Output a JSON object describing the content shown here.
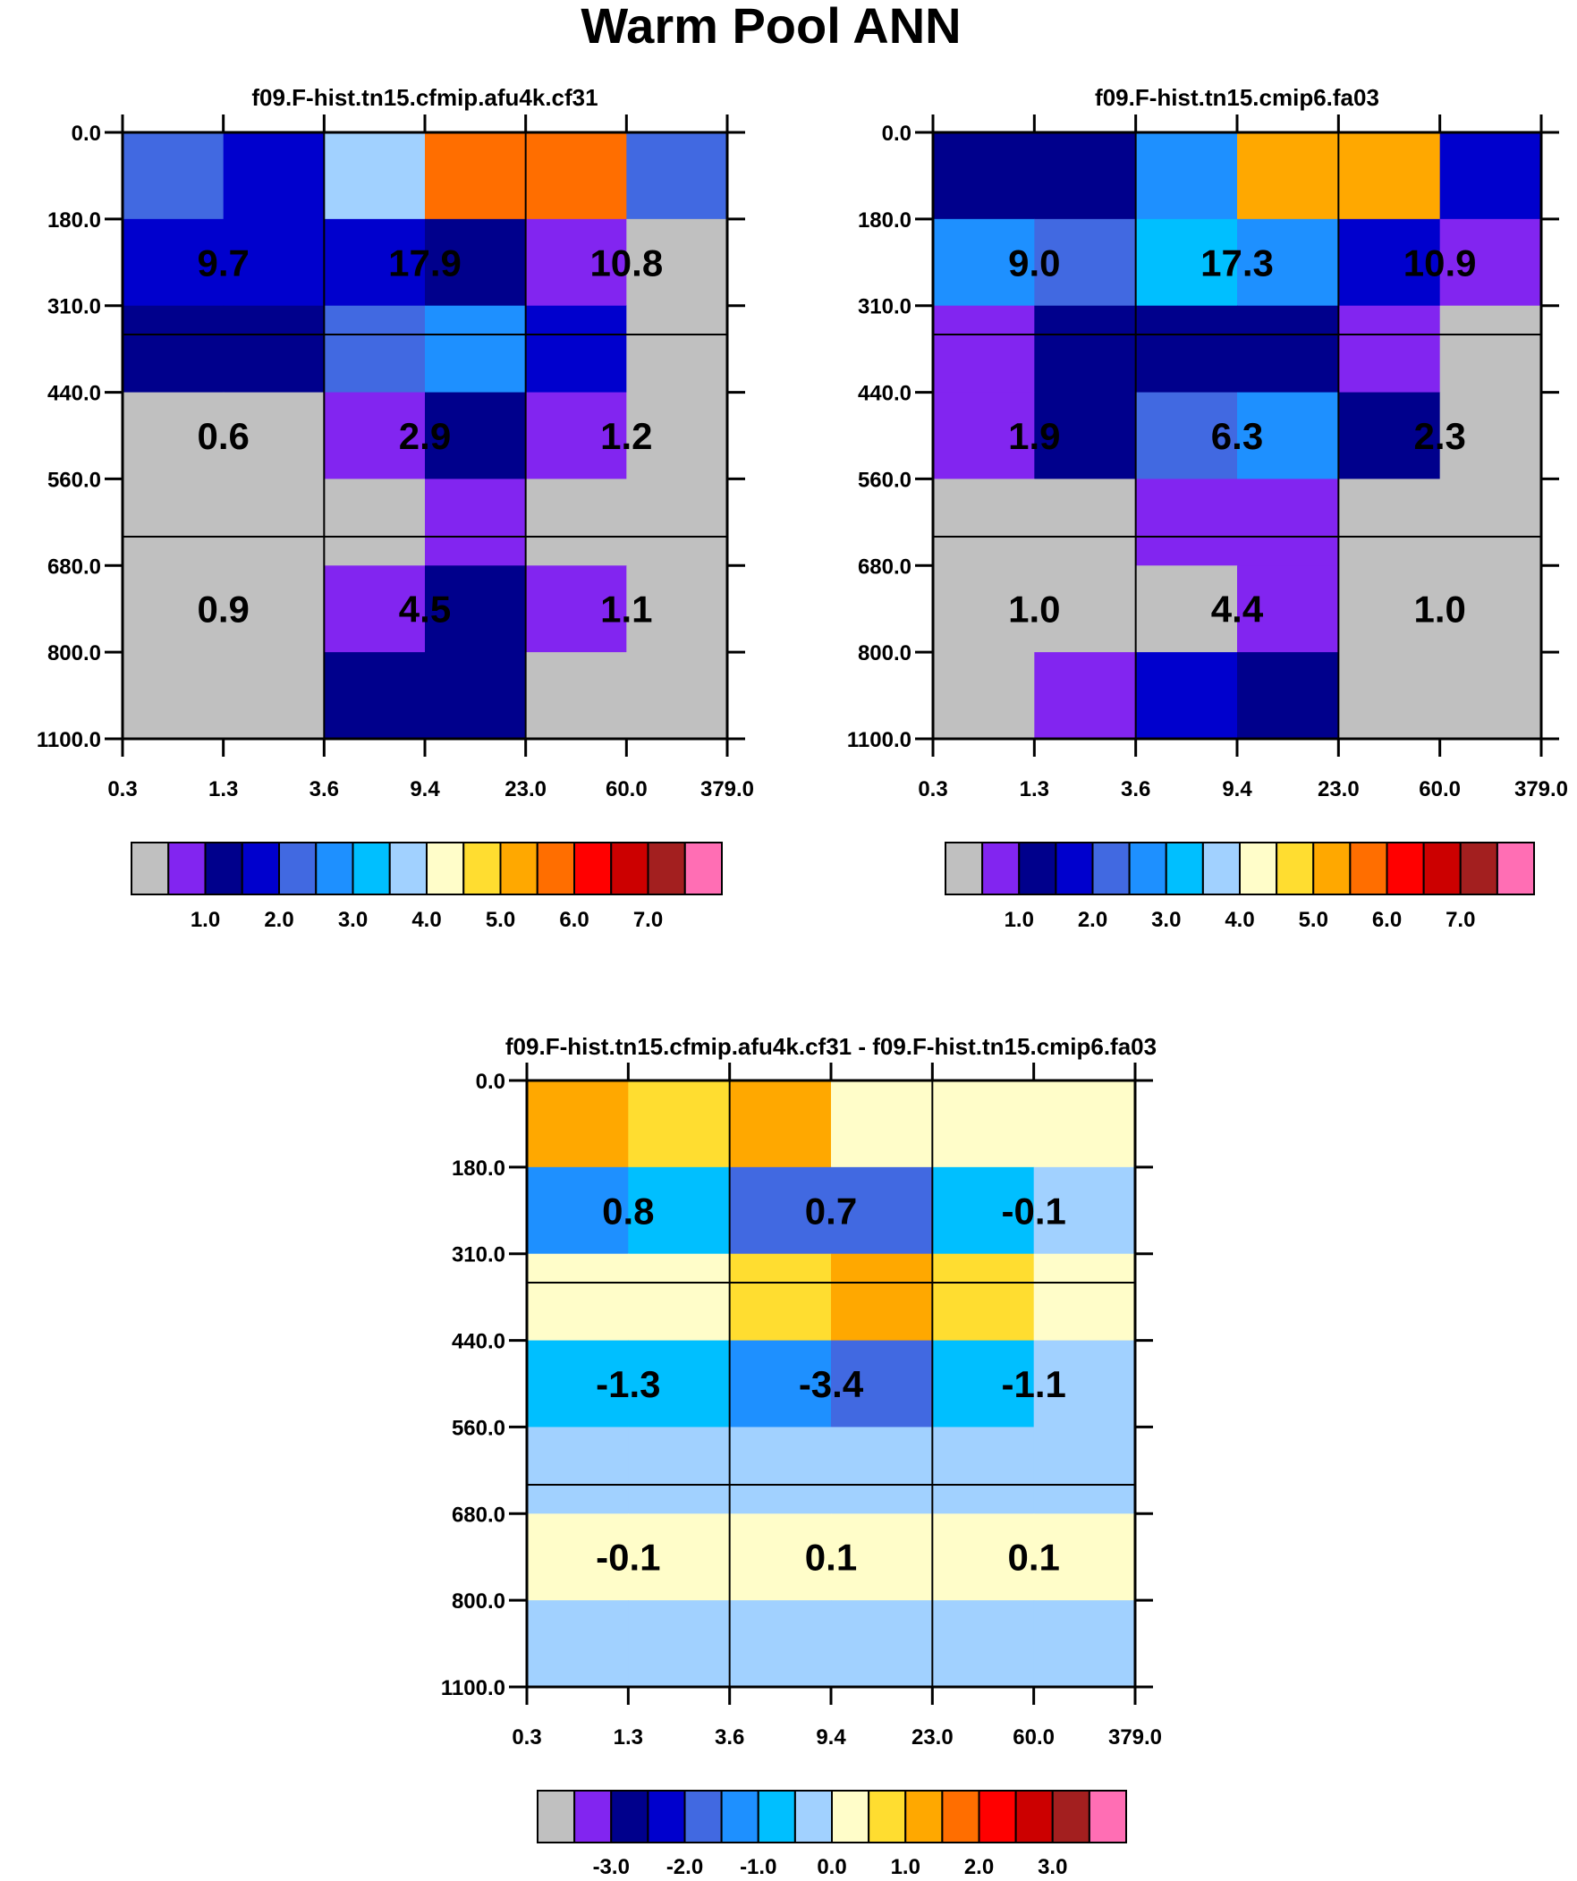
{
  "chart_data": {
    "type": "heatmap",
    "title": "Warm Pool ANN",
    "x_tick_labels": [
      "0.3",
      "1.3",
      "3.6",
      "9.4",
      "23.0",
      "60.0",
      "379.0"
    ],
    "y_tick_labels": [
      "0.0",
      "180.0",
      "310.0",
      "440.0",
      "560.0",
      "680.0",
      "800.0",
      "1100.0"
    ],
    "palette": {
      "gray": "#c0c0c0",
      "purple": "#8225f0",
      "navy": "#00008c",
      "blue": "#0000cd",
      "royal": "#4169e1",
      "dodger": "#1e90ff",
      "sky": "#00bfff",
      "light": "#a1d1ff",
      "cream": "#fffdc9",
      "yellow": "#ffdd30",
      "orange": "#ffa800",
      "dorange": "#ff6e00",
      "red": "#ff0000",
      "dred": "#cc0000",
      "brown": "#a31f1f",
      "pink": "#ff6eb4"
    },
    "panels": [
      {
        "subtitle": "f09.F-hist.tn15.cfmip.afu4k.cf31",
        "grid": [
          [
            "royal",
            "blue",
            "light",
            "dorange",
            "dorange",
            "royal"
          ],
          [
            "blue",
            "blue",
            "blue",
            "navy",
            "purple",
            "gray"
          ],
          [
            "navy",
            "navy",
            "royal",
            "dodger",
            "blue",
            "gray"
          ],
          [
            "gray",
            "gray",
            "purple",
            "navy",
            "purple",
            "gray"
          ],
          [
            "gray",
            "gray",
            "gray",
            "purple",
            "gray",
            "gray"
          ],
          [
            "gray",
            "gray",
            "purple",
            "navy",
            "purple",
            "gray"
          ],
          [
            "gray",
            "gray",
            "navy",
            "navy",
            "gray",
            "gray"
          ]
        ],
        "values": [
          [
            "9.7",
            "17.9",
            "10.8"
          ],
          [
            "0.6",
            "2.9",
            "1.2"
          ],
          [
            "0.9",
            "4.5",
            "1.1"
          ]
        ],
        "colorbar": {
          "colors": [
            "gray",
            "purple",
            "navy",
            "blue",
            "royal",
            "dodger",
            "sky",
            "light",
            "cream",
            "yellow",
            "orange",
            "dorange",
            "red",
            "dred",
            "brown",
            "pink"
          ],
          "labels": [
            "1.0",
            "2.0",
            "3.0",
            "4.0",
            "5.0",
            "6.0",
            "7.0"
          ]
        }
      },
      {
        "subtitle": "f09.F-hist.tn15.cmip6.fa03",
        "grid": [
          [
            "navy",
            "navy",
            "dodger",
            "orange",
            "orange",
            "blue"
          ],
          [
            "dodger",
            "royal",
            "sky",
            "dodger",
            "blue",
            "purple"
          ],
          [
            "purple",
            "navy",
            "navy",
            "navy",
            "purple",
            "gray"
          ],
          [
            "purple",
            "navy",
            "royal",
            "dodger",
            "navy",
            "gray"
          ],
          [
            "gray",
            "gray",
            "purple",
            "purple",
            "gray",
            "gray"
          ],
          [
            "gray",
            "gray",
            "gray",
            "purple",
            "gray",
            "gray"
          ],
          [
            "gray",
            "purple",
            "blue",
            "navy",
            "gray",
            "gray"
          ]
        ],
        "values": [
          [
            "9.0",
            "17.3",
            "10.9"
          ],
          [
            "1.9",
            "6.3",
            "2.3"
          ],
          [
            "1.0",
            "4.4",
            "1.0"
          ]
        ],
        "colorbar": {
          "colors": [
            "gray",
            "purple",
            "navy",
            "blue",
            "royal",
            "dodger",
            "sky",
            "light",
            "cream",
            "yellow",
            "orange",
            "dorange",
            "red",
            "dred",
            "brown",
            "pink"
          ],
          "labels": [
            "1.0",
            "2.0",
            "3.0",
            "4.0",
            "5.0",
            "6.0",
            "7.0"
          ]
        }
      },
      {
        "subtitle": "f09.F-hist.tn15.cfmip.afu4k.cf31 - f09.F-hist.tn15.cmip6.fa03",
        "grid": [
          [
            "orange",
            "yellow",
            "orange",
            "cream",
            "cream",
            "cream"
          ],
          [
            "dodger",
            "sky",
            "royal",
            "royal",
            "sky",
            "light"
          ],
          [
            "cream",
            "cream",
            "yellow",
            "orange",
            "yellow",
            "cream"
          ],
          [
            "sky",
            "sky",
            "dodger",
            "royal",
            "sky",
            "light"
          ],
          [
            "light",
            "light",
            "light",
            "light",
            "light",
            "light"
          ],
          [
            "cream",
            "cream",
            "cream",
            "cream",
            "cream",
            "cream"
          ],
          [
            "light",
            "light",
            "light",
            "light",
            "light",
            "light"
          ]
        ],
        "values": [
          [
            "0.8",
            "0.7",
            "-0.1"
          ],
          [
            "-1.3",
            "-3.4",
            "-1.1"
          ],
          [
            "-0.1",
            "0.1",
            "0.1"
          ]
        ],
        "colorbar": {
          "colors": [
            "gray",
            "purple",
            "navy",
            "blue",
            "royal",
            "dodger",
            "sky",
            "light",
            "cream",
            "yellow",
            "orange",
            "dorange",
            "red",
            "dred",
            "brown",
            "pink"
          ],
          "labels": [
            "-3.0",
            "-2.0",
            "-1.0",
            "0.0",
            "1.0",
            "2.0",
            "3.0"
          ]
        }
      }
    ]
  }
}
